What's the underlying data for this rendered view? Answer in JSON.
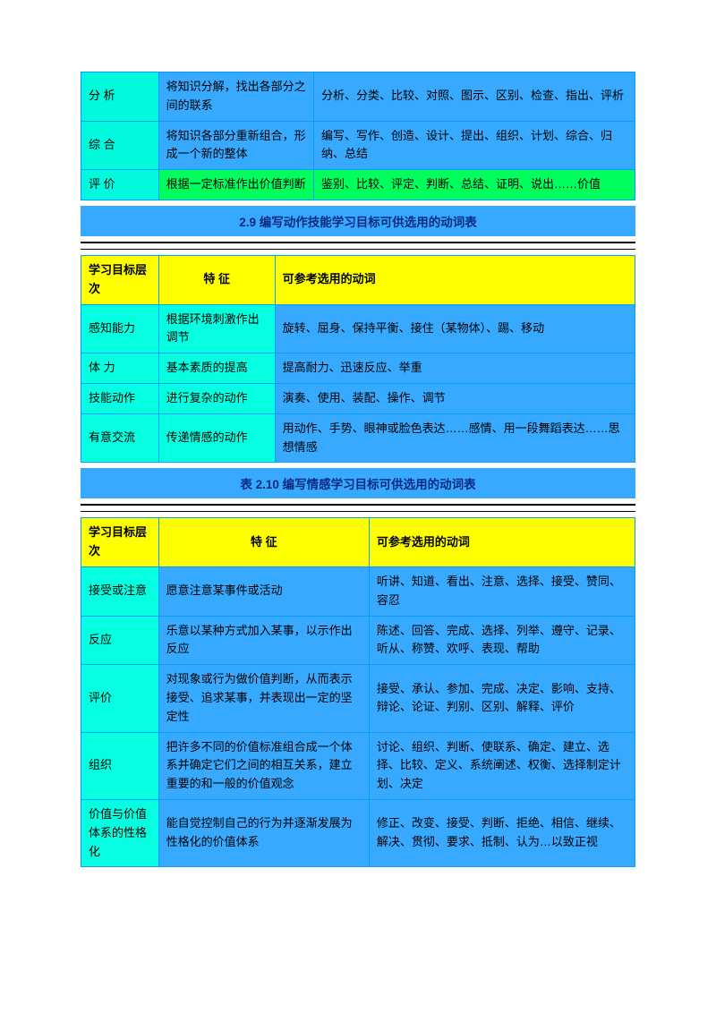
{
  "table1": {
    "rows": [
      {
        "c1": "分 析",
        "c2": "将知识分解，找出各部分之间的联系",
        "c3": "分析、分类、比较、对照、图示、区别、检查、指出、评析",
        "c1_cls": "c-cyanBright",
        "c2_cls": "c-blue",
        "c3_cls": "c-blue"
      },
      {
        "c1": "综 合",
        "c2": "将知识各部分重新组合，形成一个新的整体",
        "c3": "编写、写作、创造、设计、提出、组织、计划、综合、归纳、总结",
        "c1_cls": "c-cyanBright",
        "c2_cls": "c-blue",
        "c3_cls": "c-blue"
      },
      {
        "c1": "评 价",
        "c2": "根据一定标准作出价值判断",
        "c3": "鉴别、比较、评定、判断、总结、证明、说出……价值",
        "c1_cls": "c-cyanBright",
        "c2_cls": "c-green",
        "c3_cls": "c-green"
      }
    ],
    "widths": {
      "c1": "14%",
      "c2": "28%",
      "c3": "58%"
    }
  },
  "title2": "2.9 编写动作技能学习目标可供选用的动词表",
  "table2": {
    "headers": {
      "h1": "学习目标层次",
      "h2": "特 征",
      "h3": "可参考选用的动词"
    },
    "rows": [
      {
        "c1": "感知能力",
        "c2": "根据环境刺激作出调节",
        "c3": "旋转、屈身、保持平衡、接住（某物体）、踢、移动"
      },
      {
        "c1": "体 力",
        "c2": "基本素质的提高",
        "c3": "提高耐力、迅速反应、举重"
      },
      {
        "c1": "技能动作",
        "c2": "进行复杂的动作",
        "c3": "演奏、使用、装配、操作、调节"
      },
      {
        "c1": "有意交流",
        "c2": "传递情感的动作",
        "c3": "用动作、手势、眼神或脸色表达……感情、用一段舞蹈表达……思想情感"
      }
    ],
    "widths": {
      "c1": "14%",
      "c2": "21%",
      "c3": "65%"
    }
  },
  "title3": "表 2.10 编写情感学习目标可供选用的动词表",
  "table3": {
    "headers": {
      "h1": "学习目标层次",
      "h2": "特 征",
      "h3": "可参考选用的动词"
    },
    "rows": [
      {
        "c1": "接受或注意",
        "c2": "愿意注意某事件或活动",
        "c3": "听讲、知道、看出、注意、选择、接受、赞同、容忍"
      },
      {
        "c1": "反应",
        "c2": "乐意以某种方式加入某事，以示作出反应",
        "c3": "陈述、回答、完成、选择、列举、遵守、记录、听从、称赞、欢呼、表现、帮助"
      },
      {
        "c1": "评价",
        "c2": "对现象或行为做价值判断，从而表示接受、追求某事，并表现出一定的坚定性",
        "c3": "接受、承认、参加、完成、决定、影响、支持、辩论、论证、判别、区别、解释、评价"
      },
      {
        "c1": "组织",
        "c2": "把许多不同的价值标准组合成一个体系并确定它们之间的相互关系，建立重要的和一般的价值观念",
        "c3": "讨论、组织、判断、使联系、确定、建立、选择、比较、定义、系统阐述、权衡、选择制定计划、决定"
      },
      {
        "c1": "价值与价值体系的性格化",
        "c2": "能自觉控制自己的行为并逐渐发展为性格化的价值体系",
        "c3": "修正、改变、接受、判断、拒绝、相信、继续、解决、贯彻、要求、抵制、认为…以致正视"
      }
    ],
    "widths": {
      "c1": "14%",
      "c2": "38%",
      "c3": "48%"
    }
  }
}
